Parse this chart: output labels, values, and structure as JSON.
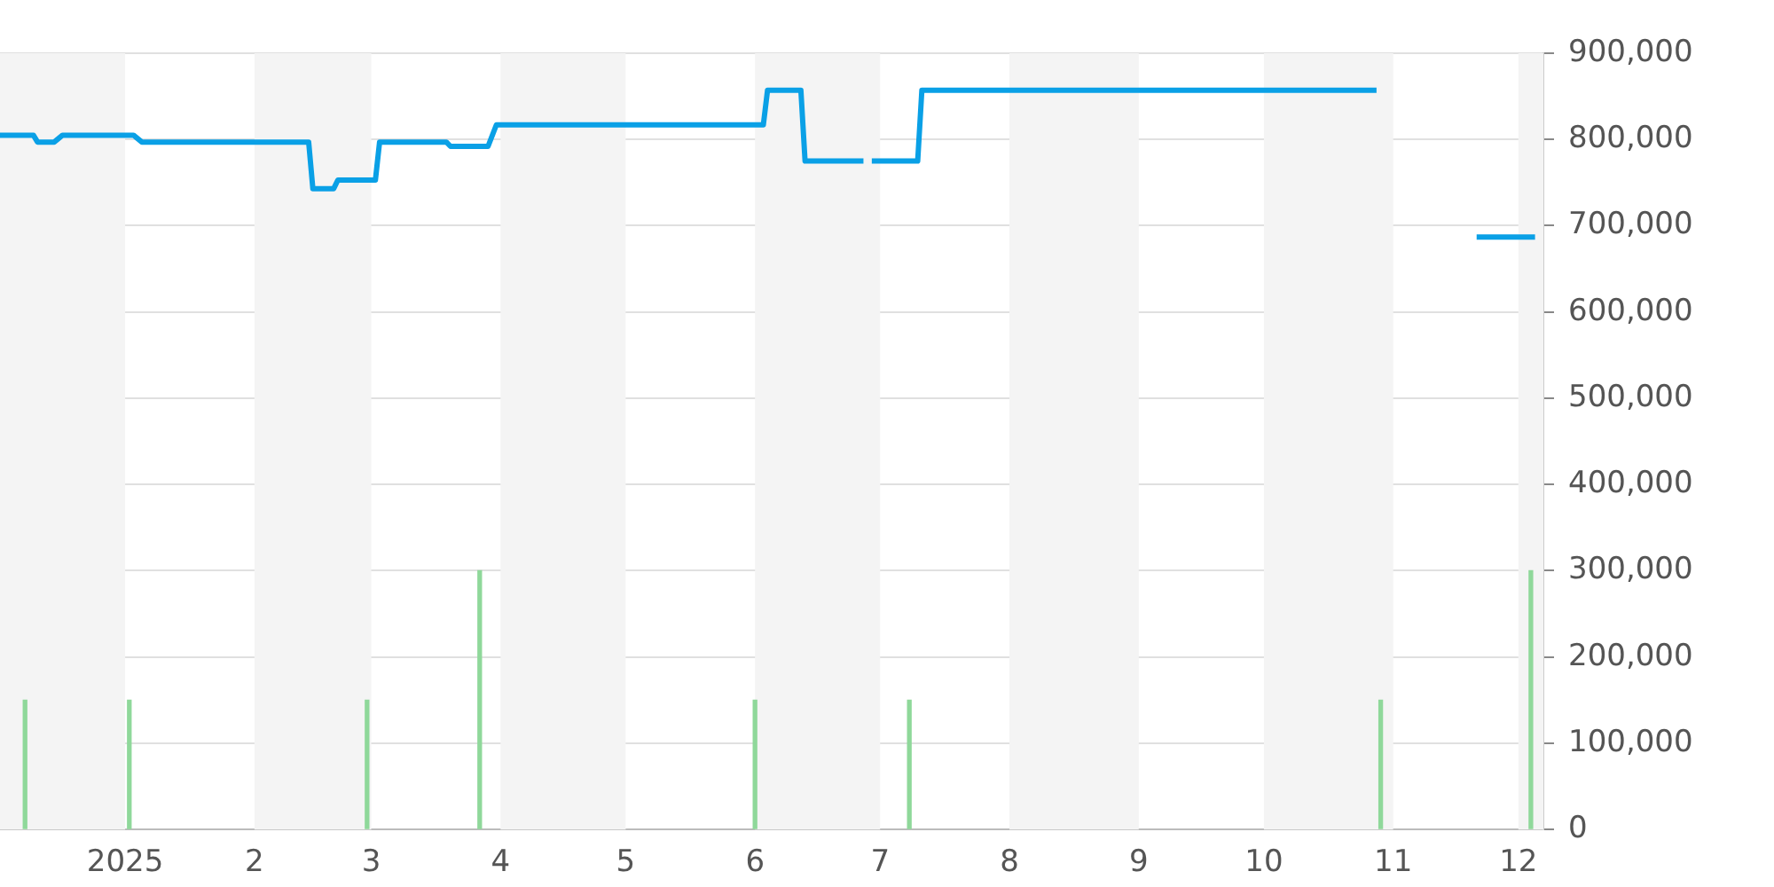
{
  "chart_data": {
    "type": "line",
    "xlim": [
      "2024-12-02",
      "2025-12-07"
    ],
    "xticks": [
      {
        "value": "2025-01-01",
        "label": "2025"
      },
      {
        "value": "2025-02-01",
        "label": "2"
      },
      {
        "value": "2025-03-01",
        "label": "3"
      },
      {
        "value": "2025-04-01",
        "label": "4"
      },
      {
        "value": "2025-05-01",
        "label": "5"
      },
      {
        "value": "2025-06-01",
        "label": "6"
      },
      {
        "value": "2025-07-01",
        "label": "7"
      },
      {
        "value": "2025-08-01",
        "label": "8"
      },
      {
        "value": "2025-09-01",
        "label": "9"
      },
      {
        "value": "2025-10-01",
        "label": "10"
      },
      {
        "value": "2025-11-01",
        "label": "11"
      },
      {
        "value": "2025-12-01",
        "label": "12"
      }
    ],
    "ylim": [
      0,
      900000
    ],
    "yticks": [
      {
        "value": 0,
        "label": "0"
      },
      {
        "value": 100000,
        "label": "100,000"
      },
      {
        "value": 200000,
        "label": "200,000"
      },
      {
        "value": 300000,
        "label": "300,000"
      },
      {
        "value": 400000,
        "label": "400,000"
      },
      {
        "value": 500000,
        "label": "500,000"
      },
      {
        "value": 600000,
        "label": "600,000"
      },
      {
        "value": 700000,
        "label": "700,000"
      },
      {
        "value": 800000,
        "label": "800,000"
      },
      {
        "value": 900000,
        "label": "900,000"
      }
    ],
    "grid": "y",
    "legend": false,
    "marker": "none",
    "line_style": "solid",
    "bands": [
      {
        "axis": "x",
        "from": "2024-12-02",
        "to": "2025-01-01",
        "color": "#f4f4f4"
      },
      {
        "axis": "x",
        "from": "2025-02-01",
        "to": "2025-03-01",
        "color": "#f4f4f4"
      },
      {
        "axis": "x",
        "from": "2025-04-01",
        "to": "2025-05-01",
        "color": "#f4f4f4"
      },
      {
        "axis": "x",
        "from": "2025-06-01",
        "to": "2025-07-01",
        "color": "#f4f4f4"
      },
      {
        "axis": "x",
        "from": "2025-08-01",
        "to": "2025-09-01",
        "color": "#f4f4f4"
      },
      {
        "axis": "x",
        "from": "2025-10-01",
        "to": "2025-11-01",
        "color": "#f4f4f4"
      },
      {
        "axis": "x",
        "from": "2025-12-01",
        "to": "2025-12-07",
        "color": "#f4f4f4"
      }
    ],
    "series": [
      {
        "color": "#0aa0e6",
        "x": [
          "2024-12-02",
          "2024-12-10",
          "2024-12-11",
          "2024-12-15",
          "2024-12-17",
          "2025-01-03",
          "2025-01-05",
          "2025-02-14",
          "2025-02-15",
          "2025-02-20",
          "2025-02-21",
          "2025-03-02",
          "2025-03-03",
          "2025-03-19",
          "2025-03-20",
          "2025-03-29",
          "2025-03-31",
          "2025-06-03",
          "2025-06-04",
          "2025-06-12",
          "2025-06-13",
          "2025-06-27",
          "2025-06-28",
          "2025-06-29",
          "2025-07-10",
          "2025-07-11",
          "2025-10-28",
          "2025-10-29",
          "2025-11-21",
          "2025-12-05"
        ],
        "values": [
          805000,
          805000,
          797000,
          797000,
          805000,
          805000,
          797000,
          797000,
          743000,
          743000,
          753000,
          753000,
          797000,
          797000,
          792000,
          792000,
          817000,
          817000,
          857000,
          857000,
          775000,
          775000,
          null,
          775000,
          775000,
          857000,
          857000,
          null,
          687000,
          687000
        ]
      },
      {
        "type": "bar",
        "color": "#8fd89a",
        "x": [
          "2024-12-08",
          "2025-01-02",
          "2025-02-28",
          "2025-03-27",
          "2025-06-01",
          "2025-07-08",
          "2025-10-29",
          "2025-12-04"
        ],
        "values": [
          150000,
          150000,
          150000,
          300000,
          150000,
          150000,
          150000,
          300000
        ]
      }
    ]
  }
}
